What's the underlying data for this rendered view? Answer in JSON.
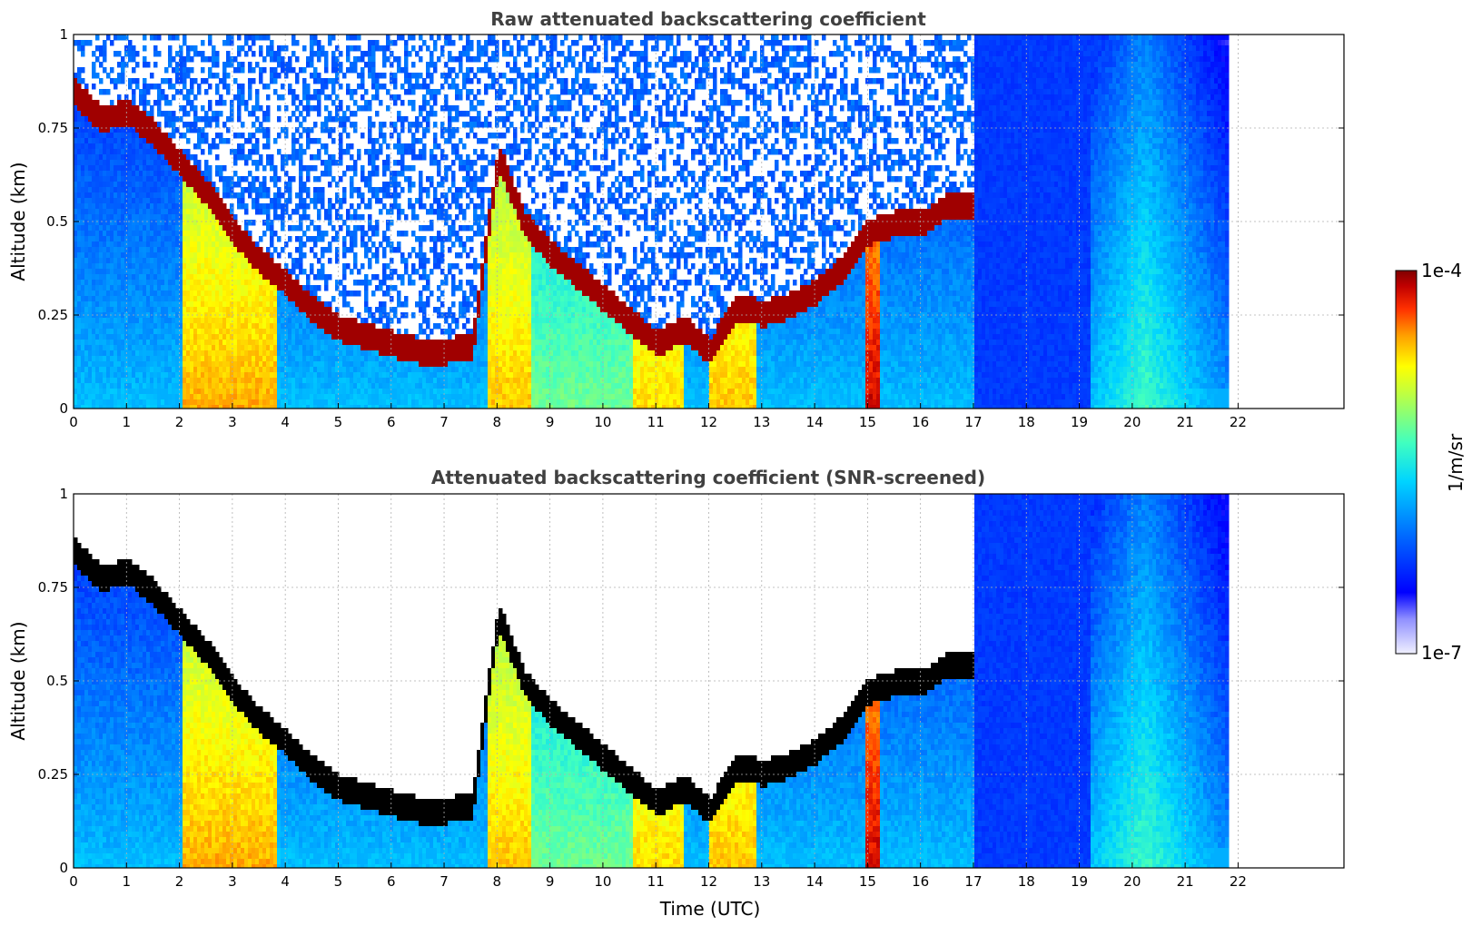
{
  "chart_data": [
    {
      "type": "heatmap",
      "title": "Raw attenuated backscattering coefficient",
      "xlabel": "",
      "ylabel": "Altitude (km)",
      "xlim": [
        0,
        24
      ],
      "ylim": [
        0,
        1
      ],
      "xticks": [
        "0",
        "1",
        "2",
        "3",
        "4",
        "5",
        "6",
        "7",
        "8",
        "9",
        "10",
        "11",
        "12",
        "13",
        "14",
        "15",
        "16",
        "17",
        "18",
        "19",
        "20",
        "21",
        "22"
      ],
      "yticks": [
        "0",
        "0.25",
        "0.5",
        "0.75",
        "1"
      ],
      "grid": true,
      "data_end_time": 21.8,
      "cloud_base_km": {
        "t": [
          0,
          0.5,
          1,
          1.5,
          2,
          2.5,
          3,
          3.5,
          4,
          4.5,
          5,
          5.5,
          6,
          6.5,
          7,
          7.5,
          8,
          8.5,
          9,
          9.5,
          10,
          10.5,
          11,
          11.5,
          12,
          12.5,
          13,
          13.5,
          14,
          14.5,
          15,
          15.5,
          16,
          16.5,
          17
        ],
        "alt": [
          0.85,
          0.78,
          0.8,
          0.74,
          0.66,
          0.58,
          0.48,
          0.4,
          0.34,
          0.27,
          0.22,
          0.2,
          0.18,
          0.16,
          0.16,
          0.17,
          0.68,
          0.5,
          0.42,
          0.36,
          0.3,
          0.24,
          0.18,
          0.22,
          0.16,
          0.28,
          0.26,
          0.28,
          0.32,
          0.38,
          0.48,
          0.5,
          0.5,
          0.55,
          0.55
        ]
      }
    },
    {
      "type": "heatmap",
      "title": "Attenuated backscattering coefficient (SNR-screened)",
      "xlabel": "Time (UTC)",
      "ylabel": "Altitude (km)",
      "xlim": [
        0,
        24
      ],
      "ylim": [
        0,
        1
      ],
      "xticks": [
        "0",
        "1",
        "2",
        "3",
        "4",
        "5",
        "6",
        "7",
        "8",
        "9",
        "10",
        "11",
        "12",
        "13",
        "14",
        "15",
        "16",
        "17",
        "18",
        "19",
        "20",
        "21",
        "22"
      ],
      "yticks": [
        "0",
        "0.25",
        "0.5",
        "0.75",
        "1"
      ],
      "grid": true,
      "data_end_time": 21.8
    }
  ],
  "colorbar": {
    "label": "1/m/sr",
    "max_label": "1e-4",
    "min_label": "1e-7",
    "colormap": [
      "#f0f0ff",
      "#c8c8ff",
      "#0000ff",
      "#0064ff",
      "#00c8ff",
      "#40ffc0",
      "#c0ff40",
      "#ffff00",
      "#ffa000",
      "#ff3000",
      "#c00000",
      "#800000"
    ]
  }
}
